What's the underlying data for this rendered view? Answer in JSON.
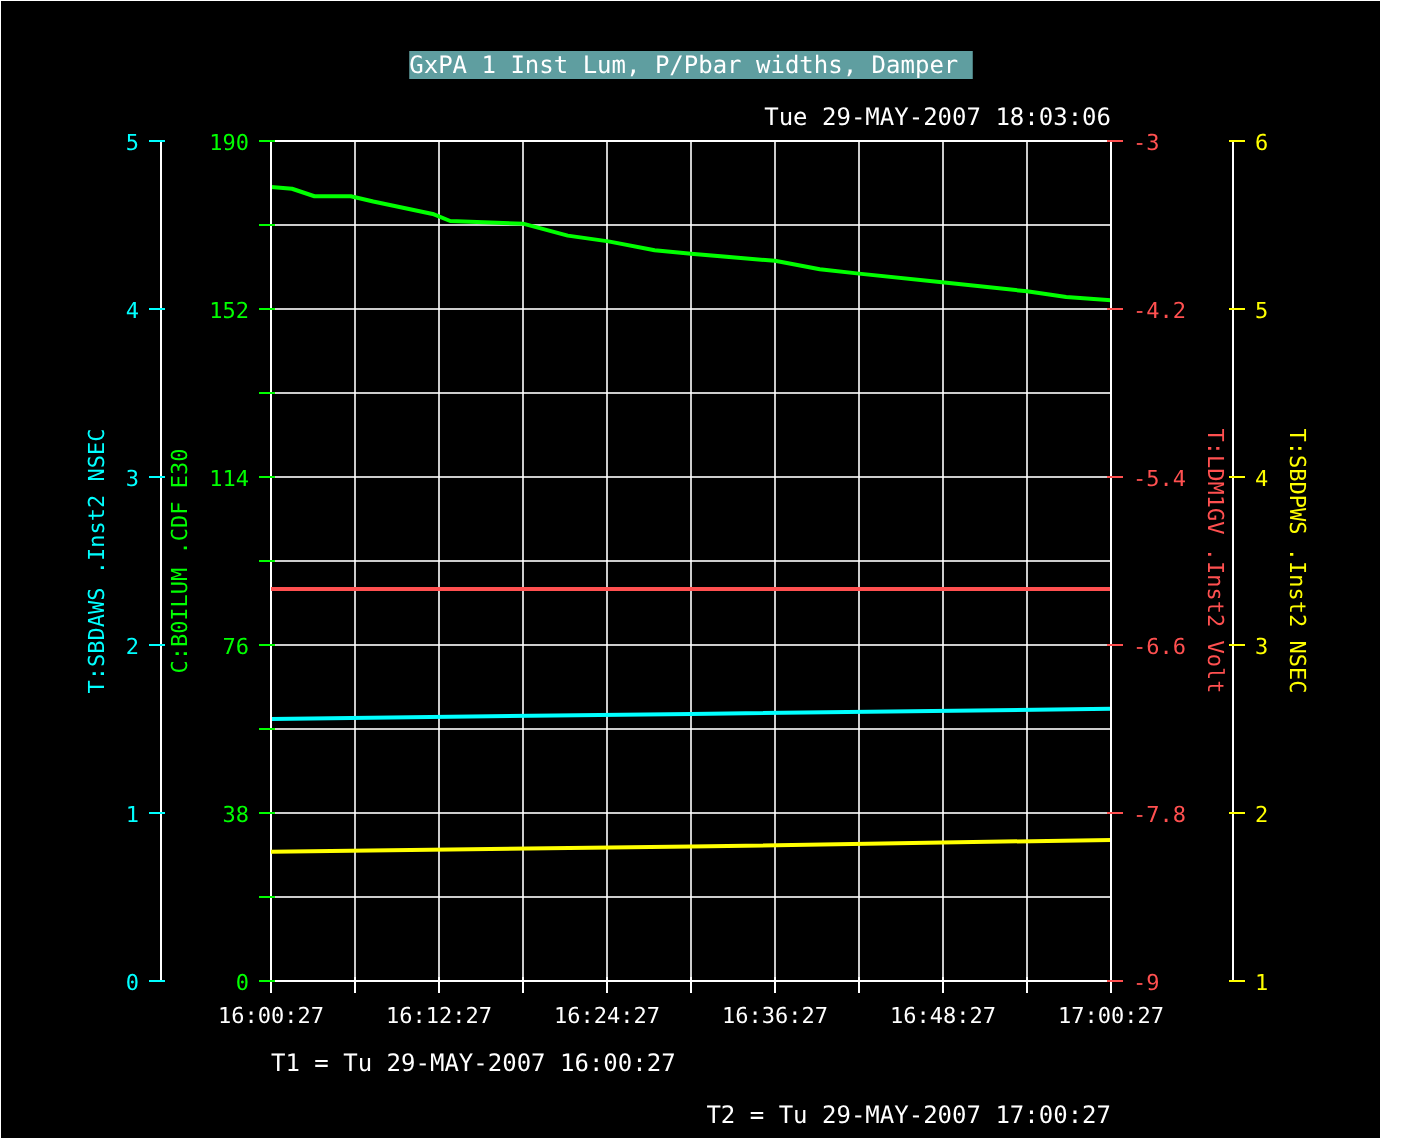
{
  "chart_data": [
    {
      "type": "line",
      "title": "GxPA 1  Inst Lum, P/Pbar widths, Damper",
      "subtitle": "Tue 29-MAY-2007 18:03:06",
      "annotations": [
        "T1 = Tu 29-MAY-2007 16:00:27",
        "T2 = Tu 29-MAY-2007 17:00:27"
      ],
      "xlim": [
        16.0075,
        17.0075
      ],
      "xticks": [
        {
          "value": 16.0075,
          "label": "16:00:27"
        },
        {
          "value": 16.1075,
          "label": null
        },
        {
          "value": 16.2075,
          "label": "16:12:27"
        },
        {
          "value": 16.3075,
          "label": null
        },
        {
          "value": 16.4075,
          "label": "16:24:27"
        },
        {
          "value": 16.5075,
          "label": null
        },
        {
          "value": 16.6075,
          "label": "16:36:27"
        },
        {
          "value": 16.7075,
          "label": null
        },
        {
          "value": 16.8075,
          "label": "16:48:27"
        },
        {
          "value": 16.9075,
          "label": null
        },
        {
          "value": 17.0075,
          "label": "17:00:27"
        }
      ],
      "ylim": [
        0,
        190
      ],
      "yticks": [
        0,
        {
          "value": 19,
          "label": null
        },
        38,
        {
          "value": 57,
          "label": null
        },
        76,
        {
          "value": 95,
          "label": null
        },
        114,
        {
          "value": 133,
          "label": null
        },
        152,
        {
          "value": 171,
          "label": null
        },
        190
      ],
      "y2lim": [
        0,
        5
      ],
      "y2ticks": [
        0,
        1,
        2,
        3,
        4,
        5
      ],
      "grid": true,
      "line_style": "solid",
      "series": [
        {
          "name": "C:B0ILUM .CDF E30",
          "color": "#00ff00",
          "axis": "y",
          "x": [
            16.0075,
            16.0325,
            16.0592,
            16.1025,
            16.1292,
            16.2,
            16.2208,
            16.3075,
            16.3608,
            16.4092,
            16.4642,
            16.5075,
            16.6075,
            16.6608,
            16.7075,
            16.8092,
            16.9075,
            16.9542,
            17.0075
          ],
          "values": [
            179.6,
            179.2,
            177.5,
            177.5,
            176.3,
            173.5,
            171.9,
            171.3,
            168.6,
            167.3,
            165.3,
            164.5,
            162.9,
            161.0,
            160.0,
            158.0,
            156.0,
            154.7,
            154.0
          ]
        },
        {
          "name": "T:SBDAWS .Inst2 NSEC",
          "color": "#00ffff",
          "axis": "y2",
          "x": [
            16.0075,
            16.5075,
            17.0075
          ],
          "values": [
            1.56,
            1.59,
            1.62
          ]
        }
      ]
    },
    {
      "type": "line",
      "xlim": [
        16.0075,
        17.0075
      ],
      "ylim": [
        -9,
        -3
      ],
      "yticks": [
        -9,
        -7.8,
        -6.6,
        -5.4,
        -4.2,
        -3
      ],
      "y2lim": [
        1,
        6
      ],
      "y2ticks": [
        1,
        2,
        3,
        4,
        5,
        6
      ],
      "tick_labels": "y",
      "line_style": "solid",
      "series": [
        {
          "name": "T:LDM1GV .Inst2 Volt",
          "color": "#ff5050",
          "axis": "y",
          "x": [
            16.0075,
            16.5075,
            17.0075
          ],
          "values": [
            -6.2,
            -6.2,
            -6.2
          ]
        },
        {
          "name": "T:SBDPWS .Inst2 NSEC",
          "color": "#ffff00",
          "axis": "y2",
          "x": [
            16.0075,
            16.5075,
            17.0075
          ],
          "values": [
            1.77,
            1.8,
            1.84
          ]
        }
      ]
    }
  ]
}
